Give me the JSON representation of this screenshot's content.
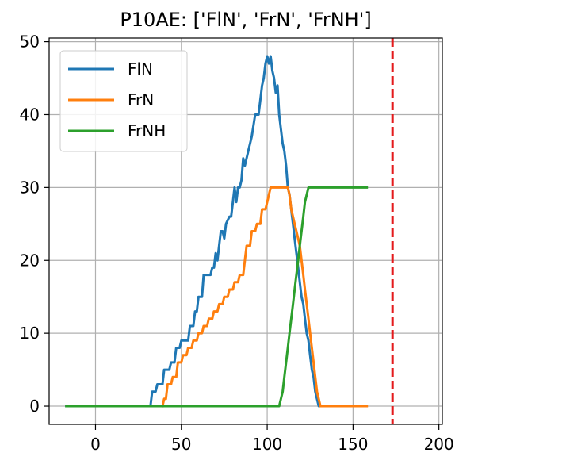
{
  "chart_data": {
    "type": "line",
    "title": "P10AE: ['FlN', 'FrN', 'FrNH']",
    "xlabel": "",
    "ylabel": "",
    "xlim": [
      -27,
      202
    ],
    "ylim": [
      -2.5,
      50.5
    ],
    "xticks": [
      0,
      50,
      100,
      150,
      200
    ],
    "yticks": [
      0,
      10,
      20,
      30,
      40,
      50
    ],
    "grid": true,
    "legend_position": "top-left",
    "vline": {
      "x": 173,
      "color": "#e41a1c",
      "style": "dashed"
    },
    "series": [
      {
        "name": "FlN",
        "color": "#1f77b4",
        "points": [
          [
            -17,
            0
          ],
          [
            32,
            0
          ],
          [
            33,
            2
          ],
          [
            35,
            2
          ],
          [
            36,
            3
          ],
          [
            39,
            3
          ],
          [
            40,
            5
          ],
          [
            43,
            5
          ],
          [
            44,
            6
          ],
          [
            46,
            6
          ],
          [
            47,
            8
          ],
          [
            49,
            8
          ],
          [
            50,
            9
          ],
          [
            54,
            9
          ],
          [
            55,
            11
          ],
          [
            57,
            11
          ],
          [
            58,
            13
          ],
          [
            59,
            13
          ],
          [
            60,
            15
          ],
          [
            62,
            15
          ],
          [
            63,
            18
          ],
          [
            67,
            18
          ],
          [
            68,
            19
          ],
          [
            69,
            19
          ],
          [
            70,
            21
          ],
          [
            71,
            20
          ],
          [
            72,
            22
          ],
          [
            73,
            24
          ],
          [
            74,
            24
          ],
          [
            75,
            23
          ],
          [
            76,
            25
          ],
          [
            78,
            26
          ],
          [
            79,
            26
          ],
          [
            80,
            28
          ],
          [
            81,
            30
          ],
          [
            82,
            28
          ],
          [
            83,
            30
          ],
          [
            84,
            30
          ],
          [
            85,
            31
          ],
          [
            86,
            34
          ],
          [
            87,
            33
          ],
          [
            89,
            35
          ],
          [
            90,
            36
          ],
          [
            91,
            37
          ],
          [
            93,
            40
          ],
          [
            95,
            40
          ],
          [
            96,
            42
          ],
          [
            97,
            44
          ],
          [
            98,
            45
          ],
          [
            99,
            47
          ],
          [
            100,
            48
          ],
          [
            101,
            47
          ],
          [
            102,
            48
          ],
          [
            103,
            46
          ],
          [
            104,
            45
          ],
          [
            105,
            43
          ],
          [
            106,
            44
          ],
          [
            107,
            40
          ],
          [
            108,
            38
          ],
          [
            109,
            36
          ],
          [
            110,
            35
          ],
          [
            111,
            33
          ],
          [
            112,
            30
          ],
          [
            113,
            29
          ],
          [
            114,
            27
          ],
          [
            115,
            25
          ],
          [
            116,
            23
          ],
          [
            117,
            21
          ],
          [
            118,
            19
          ],
          [
            119,
            17
          ],
          [
            120,
            15
          ],
          [
            121,
            14
          ],
          [
            122,
            12
          ],
          [
            123,
            10
          ],
          [
            124,
            9
          ],
          [
            125,
            7
          ],
          [
            126,
            5
          ],
          [
            127,
            4
          ],
          [
            128,
            2
          ],
          [
            129,
            1
          ],
          [
            130,
            0
          ],
          [
            136,
            0
          ]
        ]
      },
      {
        "name": "FrN",
        "color": "#ff7f0e",
        "points": [
          [
            39,
            0
          ],
          [
            40,
            1
          ],
          [
            41,
            1
          ],
          [
            42,
            3
          ],
          [
            44,
            3
          ],
          [
            45,
            4
          ],
          [
            47,
            4
          ],
          [
            48,
            6
          ],
          [
            50,
            6
          ],
          [
            51,
            7
          ],
          [
            53,
            7
          ],
          [
            54,
            8
          ],
          [
            56,
            8
          ],
          [
            57,
            9
          ],
          [
            59,
            9
          ],
          [
            60,
            10
          ],
          [
            62,
            10
          ],
          [
            63,
            11
          ],
          [
            65,
            11
          ],
          [
            66,
            12
          ],
          [
            68,
            12
          ],
          [
            69,
            13
          ],
          [
            71,
            13
          ],
          [
            72,
            14
          ],
          [
            74,
            14
          ],
          [
            75,
            15
          ],
          [
            77,
            15
          ],
          [
            78,
            16
          ],
          [
            80,
            16
          ],
          [
            81,
            17
          ],
          [
            83,
            17
          ],
          [
            84,
            18
          ],
          [
            86,
            18
          ],
          [
            87,
            20
          ],
          [
            88,
            22
          ],
          [
            90,
            22
          ],
          [
            91,
            24
          ],
          [
            93,
            24
          ],
          [
            94,
            25
          ],
          [
            96,
            25
          ],
          [
            97,
            27
          ],
          [
            99,
            27
          ],
          [
            100,
            28
          ],
          [
            101,
            29
          ],
          [
            102,
            30
          ],
          [
            112,
            30
          ],
          [
            113,
            29
          ],
          [
            114,
            27
          ],
          [
            115,
            26
          ],
          [
            116,
            25
          ],
          [
            117,
            24
          ],
          [
            118,
            23
          ],
          [
            119,
            22
          ],
          [
            120,
            20
          ],
          [
            121,
            18
          ],
          [
            122,
            16
          ],
          [
            123,
            14
          ],
          [
            124,
            12
          ],
          [
            125,
            10
          ],
          [
            126,
            8
          ],
          [
            127,
            6
          ],
          [
            128,
            4
          ],
          [
            129,
            2
          ],
          [
            130,
            1
          ],
          [
            131,
            0
          ],
          [
            158,
            0
          ]
        ]
      },
      {
        "name": "FrNH",
        "color": "#2ca02c",
        "points": [
          [
            -17,
            0
          ],
          [
            107,
            0
          ],
          [
            108,
            1
          ],
          [
            109,
            2
          ],
          [
            110,
            4
          ],
          [
            111,
            6
          ],
          [
            112,
            8
          ],
          [
            113,
            10
          ],
          [
            114,
            12
          ],
          [
            115,
            14
          ],
          [
            116,
            16
          ],
          [
            117,
            18
          ],
          [
            118,
            20
          ],
          [
            119,
            22
          ],
          [
            120,
            24
          ],
          [
            121,
            26
          ],
          [
            122,
            28
          ],
          [
            123,
            29
          ],
          [
            124,
            30
          ],
          [
            158,
            30
          ]
        ]
      }
    ]
  }
}
